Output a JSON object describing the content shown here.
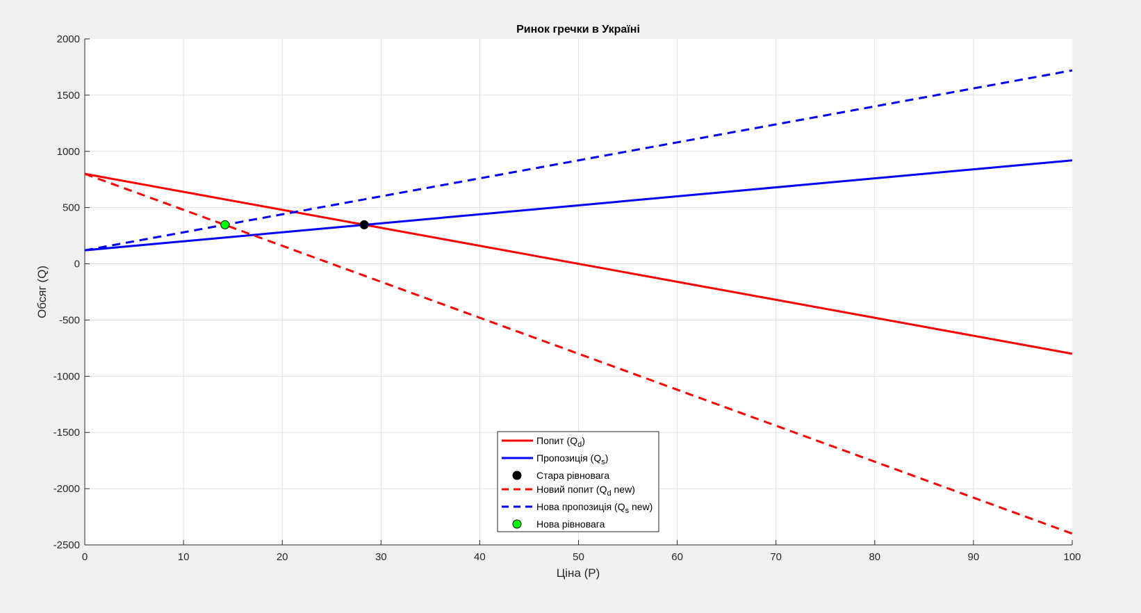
{
  "chart_data": {
    "type": "line",
    "title": "Ринок гречки в Україні",
    "xlabel": "Ціна (P)",
    "ylabel": "Обсяг (Q)",
    "xlim": [
      0,
      100
    ],
    "ylim": [
      -2500,
      2000
    ],
    "xticks": [
      0,
      10,
      20,
      30,
      40,
      50,
      60,
      70,
      80,
      90,
      100
    ],
    "yticks": [
      -2500,
      -2000,
      -1500,
      -1000,
      -500,
      0,
      500,
      1000,
      1500,
      2000
    ],
    "grid": true,
    "legend_position": "bottom-center",
    "series": [
      {
        "name": "Попит (Qd)",
        "legend_main": "Попит (Q",
        "legend_sub": "d",
        "legend_tail": ")",
        "kind": "line",
        "style": "solid",
        "color": "#ff0000",
        "x": [
          0,
          100
        ],
        "y": [
          800,
          -800
        ]
      },
      {
        "name": "Пропозиція (Qs)",
        "legend_main": "Пропозиція (Q",
        "legend_sub": "s",
        "legend_tail": ")",
        "kind": "line",
        "style": "solid",
        "color": "#0000ff",
        "x": [
          0,
          100
        ],
        "y": [
          120,
          920
        ]
      },
      {
        "name": "Стара рівновага",
        "legend_main": "Стара рівновага",
        "legend_sub": "",
        "legend_tail": "",
        "kind": "point",
        "color": "#000000",
        "x": [
          28.3
        ],
        "y": [
          347
        ]
      },
      {
        "name": "Новий попит (Qd new)",
        "legend_main": "Новий попит (Q",
        "legend_sub": "d",
        "legend_tail": " new)",
        "kind": "line",
        "style": "dashed",
        "color": "#ff0000",
        "x": [
          0,
          100
        ],
        "y": [
          800,
          -2400
        ]
      },
      {
        "name": "Нова пропозиція (Qs new)",
        "legend_main": "Нова пропозиція (Q",
        "legend_sub": "s",
        "legend_tail": " new)",
        "kind": "line",
        "style": "dashed",
        "color": "#0000ff",
        "x": [
          0,
          100
        ],
        "y": [
          120,
          1720
        ]
      },
      {
        "name": "Нова рівновага",
        "legend_main": "Нова рівновага",
        "legend_sub": "",
        "legend_tail": "",
        "kind": "point",
        "color": "#00ff00",
        "x": [
          14.2
        ],
        "y": [
          347
        ]
      }
    ]
  }
}
